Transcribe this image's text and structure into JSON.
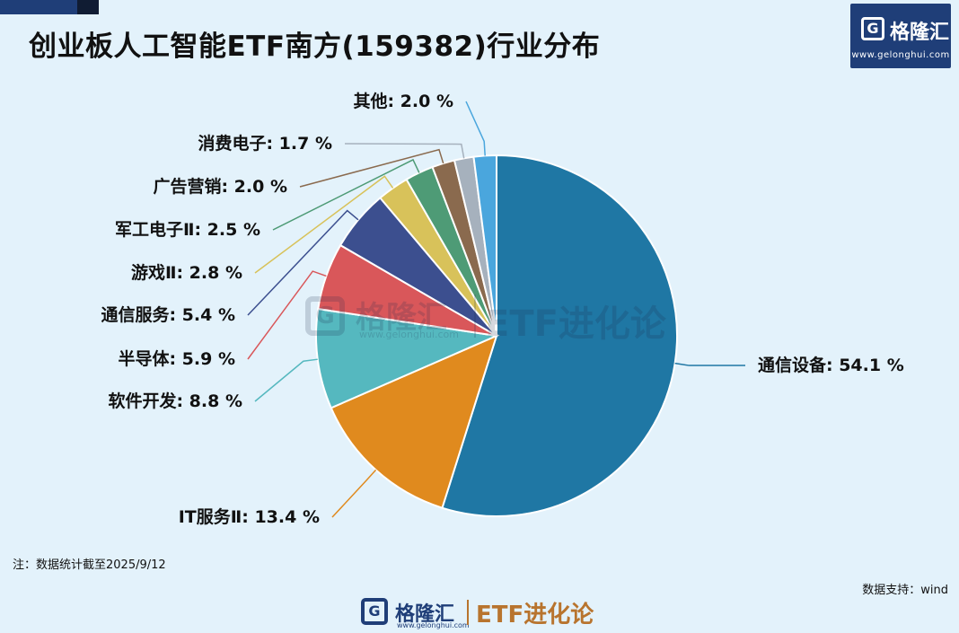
{
  "title": "创业板人工智能ETF南方(159382)行业分布",
  "brand": {
    "name": "格隆汇",
    "url": "www.gelonghui.com",
    "slogan": "ETF进化论",
    "badge_letter": "G"
  },
  "note": "注：数据统计截至2025/9/12",
  "source": "数据支持：wind",
  "chart_data": {
    "type": "pie",
    "unit": "%",
    "start_angle_deg": 0,
    "direction": "clockwise",
    "slices": [
      {
        "label": "通信设备",
        "value": 54.1,
        "display": "通信设备: 54.1 %",
        "color": "#1f77a4"
      },
      {
        "label": "IT服务Ⅱ",
        "value": 13.4,
        "display": "IT服务Ⅱ: 13.4 %",
        "color": "#e08a1e"
      },
      {
        "label": "软件开发",
        "value": 8.8,
        "display": "软件开发: 8.8 %",
        "color": "#55b8bf"
      },
      {
        "label": "半导体",
        "value": 5.9,
        "display": "半导体: 5.9 %",
        "color": "#d9575a"
      },
      {
        "label": "通信服务",
        "value": 5.4,
        "display": "通信服务: 5.4 %",
        "color": "#3c4f8f"
      },
      {
        "label": "游戏Ⅱ",
        "value": 2.8,
        "display": "游戏Ⅱ: 2.8 %",
        "color": "#d8c25a"
      },
      {
        "label": "军工电子Ⅱ",
        "value": 2.5,
        "display": "军工电子Ⅱ: 2.5 %",
        "color": "#4e9b76"
      },
      {
        "label": "广告营销",
        "value": 2.0,
        "display": "广告营销: 2.0 %",
        "color": "#8a6a4e"
      },
      {
        "label": "消费电子",
        "value": 1.7,
        "display": "消费电子: 1.7 %",
        "color": "#a6b1bd"
      },
      {
        "label": "其他",
        "value": 2.0,
        "display": "其他: 2.0 %",
        "color": "#4aa6dd"
      }
    ]
  }
}
